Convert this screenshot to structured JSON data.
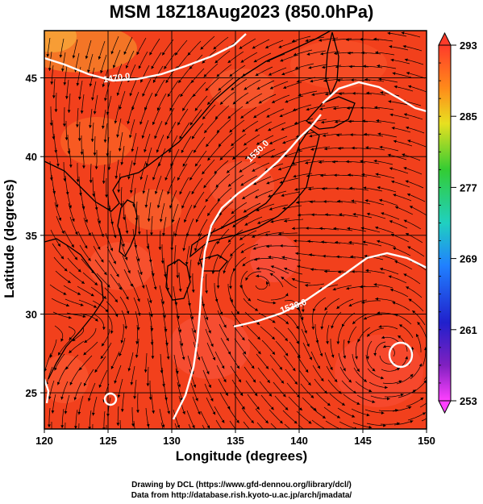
{
  "title": "MSM 18Z18Aug2023 (850.0hPa)",
  "axes": {
    "xlabel": "Longitude (degrees)",
    "ylabel": "Latitude  (degrees)",
    "xticks": [
      "120",
      "125",
      "130",
      "135",
      "140",
      "145",
      "150"
    ],
    "yticks": [
      "25",
      "30",
      "35",
      "40",
      "45"
    ]
  },
  "colorbar": {
    "labels": [
      "293",
      "285",
      "277",
      "269",
      "261",
      "253"
    ],
    "min": 253,
    "max": 293
  },
  "contours": {
    "labels": [
      "1470.0",
      "1530.0",
      "1530.0"
    ]
  },
  "footer": {
    "line1": "Drawing by DCL (https://www.gfd-dennou.org/library/dcl/)",
    "line2": "Data from http://database.rish.kyoto-u.ac.jp/arch/jmadata/"
  },
  "colors": {
    "field": "#f2401c",
    "field_warm": "#ff6a3a",
    "contour": "#ffffff",
    "streamline": "#000000"
  }
}
